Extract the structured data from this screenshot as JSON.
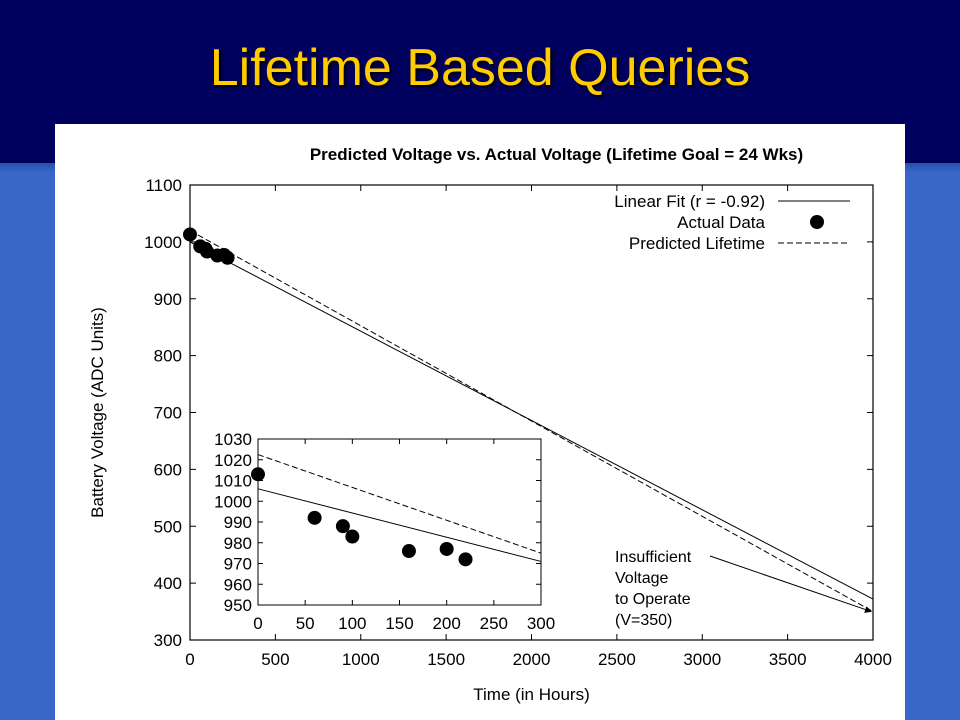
{
  "slide": {
    "title": "Lifetime Based Queries"
  },
  "chart_data": {
    "type": "line",
    "title": "Predicted Voltage vs. Actual Voltage (Lifetime Goal = 24 Wks)",
    "xlabel": "Time (in Hours)",
    "ylabel": "Battery Voltage (ADC Units)",
    "xlim": [
      0,
      4000
    ],
    "ylim": [
      300,
      1100
    ],
    "xticks": [
      0,
      500,
      1000,
      1500,
      2000,
      2500,
      3000,
      3500,
      4000
    ],
    "yticks": [
      300,
      400,
      500,
      600,
      700,
      800,
      900,
      1000,
      1100
    ],
    "grid": false,
    "legend_position": "top-right",
    "series": [
      {
        "name": "Linear Fit (r = -0.92)",
        "style": "solid",
        "x": [
          0,
          4000
        ],
        "y": [
          1000,
          372
        ]
      },
      {
        "name": "Actual Data",
        "style": "points",
        "x": [
          0,
          60,
          90,
          100,
          160,
          200,
          220
        ],
        "y": [
          1013,
          992,
          988,
          983,
          976,
          977,
          972
        ]
      },
      {
        "name": "Predicted Lifetime",
        "style": "dashed",
        "x": [
          0,
          4000
        ],
        "y": [
          1020,
          350
        ]
      }
    ],
    "annotation": {
      "lines": [
        "Insufficient",
        "Voltage",
        "to Operate",
        "(V=350)"
      ],
      "arrow_target": [
        3990,
        350
      ]
    },
    "inset": {
      "xlim": [
        0,
        300
      ],
      "ylim": [
        950,
        1030
      ],
      "xticks": [
        0,
        50,
        100,
        150,
        200,
        250,
        300
      ],
      "yticks": [
        950,
        960,
        970,
        980,
        990,
        1000,
        1010,
        1020,
        1030
      ],
      "fit_line": {
        "x": [
          0,
          300
        ],
        "y": [
          1006,
          971
        ]
      },
      "predicted_line": {
        "x": [
          0,
          300
        ],
        "y": [
          1022.5,
          975
        ]
      },
      "points": {
        "x": [
          0,
          60,
          90,
          100,
          160,
          200,
          220
        ],
        "y": [
          1013,
          992,
          988,
          983,
          976,
          977,
          972
        ]
      }
    }
  }
}
